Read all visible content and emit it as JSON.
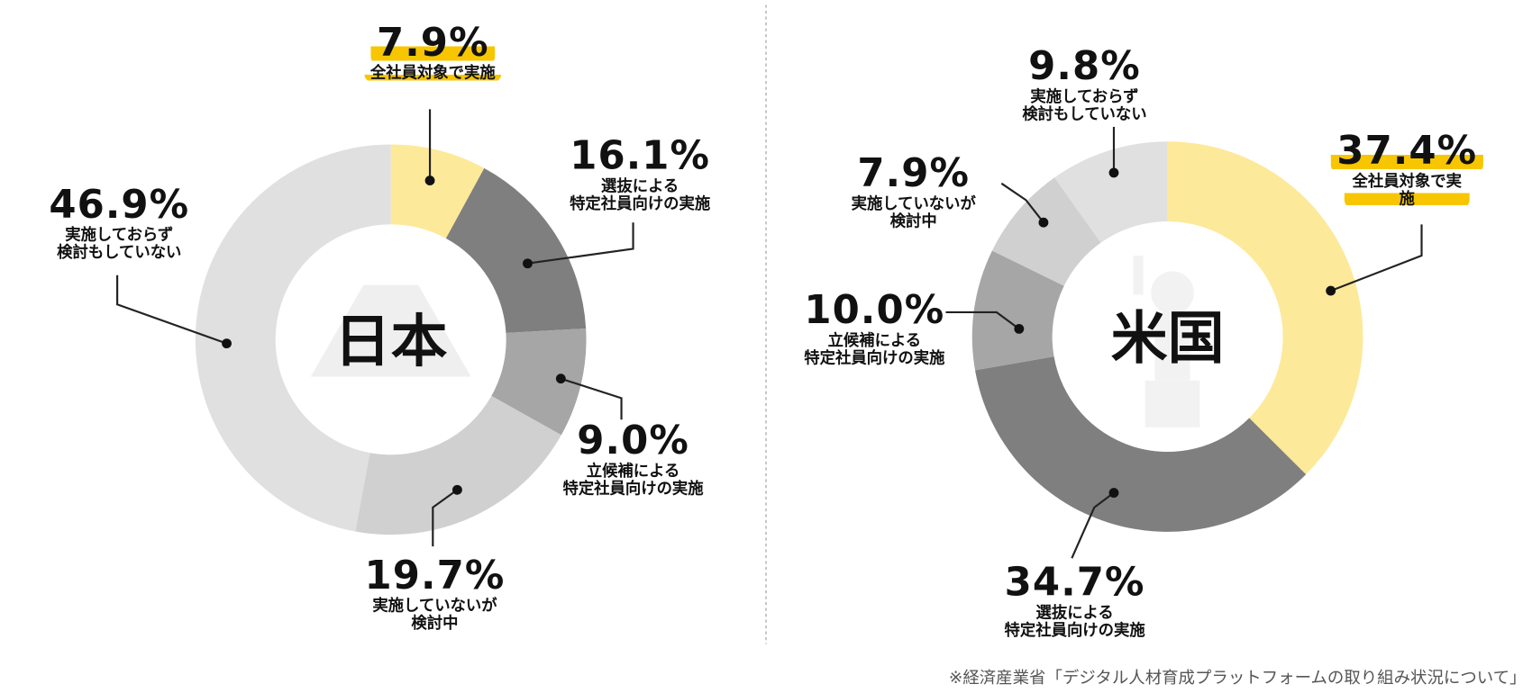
{
  "chart_data": [
    {
      "type": "donut",
      "title": "日本",
      "categories": [
        "全社員対象で実施",
        "選抜による\n特定社員向けの実施",
        "立候補による\n特定社員向けの実施",
        "実施していないが\n検討中",
        "実施しておらず\n検討もしていない"
      ],
      "values": [
        7.9,
        16.1,
        9.0,
        19.7,
        46.9
      ],
      "value_labels": [
        "7.9%",
        "16.1%",
        "9.0%",
        "19.7%",
        "46.9%"
      ],
      "colors": [
        "#fde99a",
        "#7f7f7f",
        "#a6a6a6",
        "#d0d0d0",
        "#e0e0e0"
      ]
    },
    {
      "type": "donut",
      "title": "米国",
      "categories": [
        "全社員対象で実施",
        "選抜による\n特定社員向けの実施",
        "立候補による\n特定社員向けの実施",
        "実施していないが\n検討中",
        "実施しておらず\n検討もしていない"
      ],
      "values": [
        37.4,
        34.7,
        10.0,
        7.9,
        9.8
      ],
      "value_labels": [
        "37.4%",
        "34.7%",
        "10.0%",
        "7.9%",
        "9.8%"
      ],
      "colors": [
        "#fde99a",
        "#7f7f7f",
        "#a6a6a6",
        "#d0d0d0",
        "#e0e0e0"
      ]
    }
  ],
  "footnote": "※経済産業省「デジタル人材育成プラットフォームの取り組み状況について」"
}
